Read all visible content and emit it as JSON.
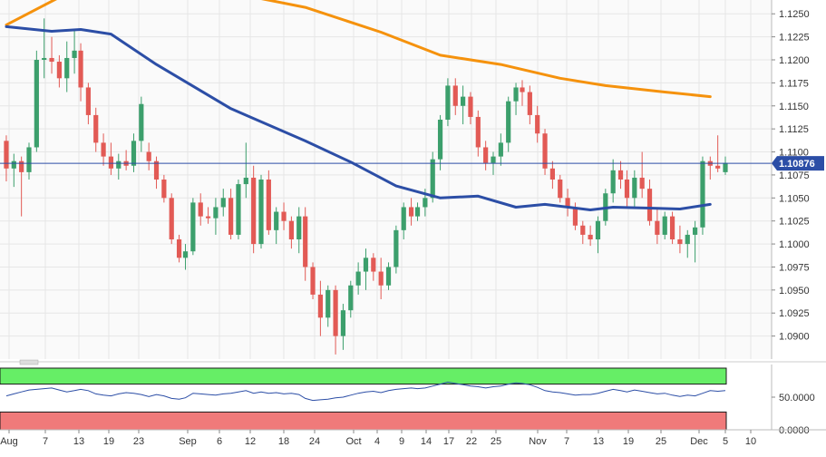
{
  "chart_data": [
    {
      "type": "candlestick",
      "instrument_last_price": "1.10876",
      "ylim": [
        1.0875,
        1.1265
      ],
      "y_ticks": [
        "1.1250",
        "1.1225",
        "1.1200",
        "1.1175",
        "1.1150",
        "1.1125",
        "1.1100",
        "1.1075",
        "1.1050",
        "1.1025",
        "1.1000",
        "1.0975",
        "1.0950",
        "1.0925",
        "1.0900"
      ],
      "x_ticks": [
        "Aug",
        "7",
        "13",
        "19",
        "23",
        "Sep",
        "6",
        "12",
        "18",
        "24",
        "Oct",
        "4",
        "9",
        "14",
        "17",
        "22",
        "25",
        "Nov",
        "7",
        "13",
        "19",
        "25",
        "Dec",
        "5",
        "10"
      ],
      "grid": true,
      "colors": {
        "up": "#3c9f6c",
        "down": "#e25a55",
        "ma_long": "#f5920d",
        "ma_mid": "#2c4ea6",
        "last_price_line": "#2c4ea6",
        "price_tag": "#2c4ea6"
      },
      "candles": [
        [
          1.1112,
          1.1118,
          1.1068,
          1.1082
        ],
        [
          1.1082,
          1.1098,
          1.1062,
          1.109
        ],
        [
          1.109,
          1.1095,
          1.103,
          1.1078
        ],
        [
          1.1078,
          1.111,
          1.107,
          1.1105
        ],
        [
          1.1105,
          1.121,
          1.11,
          1.12
        ],
        [
          1.12,
          1.1245,
          1.118,
          1.1202
        ],
        [
          1.1202,
          1.1225,
          1.1185,
          1.1198
        ],
        [
          1.1198,
          1.1205,
          1.117,
          1.118
        ],
        [
          1.118,
          1.122,
          1.1165,
          1.1202
        ],
        [
          1.1202,
          1.1232,
          1.1185,
          1.121
        ],
        [
          1.121,
          1.1218,
          1.1155,
          1.117
        ],
        [
          1.117,
          1.1175,
          1.113,
          1.114
        ],
        [
          1.114,
          1.1148,
          1.11,
          1.111
        ],
        [
          1.111,
          1.112,
          1.1085,
          1.1095
        ],
        [
          1.1095,
          1.111,
          1.1075,
          1.1082
        ],
        [
          1.1082,
          1.1098,
          1.107,
          1.109
        ],
        [
          1.109,
          1.1102,
          1.108,
          1.1085
        ],
        [
          1.1085,
          1.112,
          1.1078,
          1.1112
        ],
        [
          1.1112,
          1.116,
          1.11,
          1.1152
        ],
        [
          1.11,
          1.111,
          1.108,
          1.109
        ],
        [
          1.109,
          1.1095,
          1.106,
          1.107
        ],
        [
          1.107,
          1.1075,
          1.1045,
          1.105
        ],
        [
          1.105,
          1.1055,
          1.1,
          1.1005
        ],
        [
          1.1005,
          1.101,
          1.098,
          1.0985
        ],
        [
          1.0985,
          1.1,
          1.0972,
          1.0992
        ],
        [
          1.0992,
          1.105,
          1.0988,
          1.1045
        ],
        [
          1.1045,
          1.1055,
          1.102,
          1.103
        ],
        [
          1.103,
          1.104,
          1.1022,
          1.1028
        ],
        [
          1.1028,
          1.105,
          1.101,
          1.104
        ],
        [
          1.104,
          1.106,
          1.103,
          1.105
        ],
        [
          1.105,
          1.106,
          1.1005,
          1.101
        ],
        [
          1.101,
          1.107,
          1.1005,
          1.1065
        ],
        [
          1.1065,
          1.111,
          1.105,
          1.1072
        ],
        [
          1.1072,
          1.1085,
          1.099,
          1.1
        ],
        [
          1.1,
          1.1075,
          1.0995,
          1.107
        ],
        [
          1.107,
          1.108,
          1.101,
          1.1015
        ],
        [
          1.1015,
          1.104,
          1.1,
          1.1035
        ],
        [
          1.1035,
          1.1045,
          1.1015,
          1.1025
        ],
        [
          1.1025,
          1.103,
          1.0995,
          1.1005
        ],
        [
          1.1005,
          1.104,
          1.099,
          1.103
        ],
        [
          1.103,
          1.104,
          1.096,
          1.0975
        ],
        [
          1.0975,
          1.098,
          1.094,
          1.0945
        ],
        [
          1.0945,
          1.096,
          1.09,
          1.092
        ],
        [
          1.092,
          1.0955,
          1.091,
          1.095
        ],
        [
          1.095,
          1.0955,
          1.088,
          1.09
        ],
        [
          1.09,
          1.0935,
          1.0885,
          1.0928
        ],
        [
          1.0928,
          1.096,
          1.092,
          1.0955
        ],
        [
          1.0955,
          1.098,
          1.0945,
          1.097
        ],
        [
          1.097,
          1.0995,
          1.095,
          1.0985
        ],
        [
          1.0985,
          1.099,
          1.096,
          1.097
        ],
        [
          1.097,
          1.0985,
          1.094,
          1.0955
        ],
        [
          1.0955,
          1.098,
          1.095,
          1.0975
        ],
        [
          1.0975,
          1.102,
          1.0968,
          1.1015
        ],
        [
          1.1015,
          1.1045,
          1.1005,
          1.104
        ],
        [
          1.104,
          1.105,
          1.102,
          1.103
        ],
        [
          1.103,
          1.1045,
          1.1025,
          1.104
        ],
        [
          1.104,
          1.106,
          1.103,
          1.105
        ],
        [
          1.105,
          1.11,
          1.1045,
          1.1092
        ],
        [
          1.1092,
          1.114,
          1.108,
          1.1135
        ],
        [
          1.1135,
          1.118,
          1.1128,
          1.1172
        ],
        [
          1.1172,
          1.118,
          1.114,
          1.115
        ],
        [
          1.115,
          1.1172,
          1.113,
          1.116
        ],
        [
          1.116,
          1.1165,
          1.113,
          1.1138
        ],
        [
          1.1138,
          1.1145,
          1.1095,
          1.1105
        ],
        [
          1.1105,
          1.1112,
          1.108,
          1.1088
        ],
        [
          1.1088,
          1.11,
          1.1075,
          1.1095
        ],
        [
          1.1095,
          1.112,
          1.1085,
          1.111
        ],
        [
          1.111,
          1.116,
          1.11,
          1.1155
        ],
        [
          1.1155,
          1.1175,
          1.114,
          1.117
        ],
        [
          1.117,
          1.1178,
          1.115,
          1.1165
        ],
        [
          1.1165,
          1.1172,
          1.113,
          1.114
        ],
        [
          1.114,
          1.115,
          1.111,
          1.112
        ],
        [
          1.112,
          1.1125,
          1.1075,
          1.1082
        ],
        [
          1.1082,
          1.109,
          1.106,
          1.107
        ],
        [
          1.107,
          1.1075,
          1.1045,
          1.105
        ],
        [
          1.105,
          1.106,
          1.103,
          1.104
        ],
        [
          1.104,
          1.1045,
          1.1015,
          1.102
        ],
        [
          1.102,
          1.1025,
          1.1,
          1.101
        ],
        [
          1.101,
          1.102,
          1.0998,
          1.1005
        ],
        [
          1.1005,
          1.103,
          1.099,
          1.1025
        ],
        [
          1.1025,
          1.106,
          1.102,
          1.1055
        ],
        [
          1.1055,
          1.1092,
          1.1045,
          1.108
        ],
        [
          1.108,
          1.109,
          1.106,
          1.107
        ],
        [
          1.107,
          1.108,
          1.104,
          1.105
        ],
        [
          1.105,
          1.108,
          1.104,
          1.1072
        ],
        [
          1.1072,
          1.11,
          1.105,
          1.106
        ],
        [
          1.106,
          1.107,
          1.102,
          1.1025
        ],
        [
          1.1025,
          1.104,
          1.1,
          1.101
        ],
        [
          1.101,
          1.1035,
          1.1005,
          1.103
        ],
        [
          1.103,
          1.1035,
          1.1,
          1.1005
        ],
        [
          1.1005,
          1.102,
          1.099,
          1.1
        ],
        [
          1.1,
          1.1015,
          1.0985,
          1.101
        ],
        [
          1.101,
          1.1025,
          1.098,
          1.1018
        ],
        [
          1.1018,
          1.1095,
          1.101,
          1.109
        ],
        [
          1.109,
          1.1095,
          1.107,
          1.1085
        ],
        [
          1.1085,
          1.1118,
          1.1078,
          1.1082
        ],
        [
          1.1078,
          1.1095,
          1.1075,
          1.1088
        ]
      ],
      "ma_long": [
        [
          0,
          1.1238
        ],
        [
          10,
          1.128
        ],
        [
          30,
          1.1273
        ],
        [
          40,
          1.1257
        ],
        [
          50,
          1.123
        ],
        [
          58,
          1.1205
        ],
        [
          66,
          1.1195
        ],
        [
          74,
          1.118
        ],
        [
          80,
          1.1172
        ],
        [
          88,
          1.1165
        ],
        [
          94,
          1.116
        ]
      ],
      "ma_mid": [
        [
          0,
          1.1236
        ],
        [
          6,
          1.1231
        ],
        [
          10,
          1.1233
        ],
        [
          14,
          1.1228
        ],
        [
          20,
          1.1195
        ],
        [
          30,
          1.1147
        ],
        [
          40,
          1.1112
        ],
        [
          46,
          1.1089
        ],
        [
          52,
          1.1063
        ],
        [
          58,
          1.105
        ],
        [
          63,
          1.1052
        ],
        [
          68,
          1.104
        ],
        [
          72,
          1.1043
        ],
        [
          78,
          1.1037
        ],
        [
          81,
          1.104
        ],
        [
          86,
          1.1039
        ],
        [
          90,
          1.1038
        ],
        [
          94,
          1.1043
        ]
      ],
      "indicator": {
        "ylim": [
          0,
          100
        ],
        "y_ticks": [
          "50.0000",
          "0.0000"
        ],
        "upper_band": 70,
        "lower_band": 30,
        "colors": {
          "line": "#2c4ea6",
          "overbought": "#66ee66",
          "oversold": "#f07a7a"
        },
        "values": [
          52,
          55,
          58,
          61,
          62,
          63,
          64,
          61,
          58,
          60,
          62,
          60,
          55,
          53,
          52,
          55,
          57,
          56,
          54,
          51,
          54,
          52,
          48,
          47,
          49,
          56,
          55,
          54,
          53,
          55,
          56,
          58,
          60,
          56,
          58,
          56,
          57,
          55,
          56,
          54,
          48,
          45,
          46,
          47,
          49,
          50,
          53,
          56,
          58,
          59,
          57,
          60,
          62,
          63,
          64,
          63,
          64,
          67,
          70,
          73,
          71,
          69,
          67,
          66,
          64,
          66,
          67,
          70,
          72,
          71,
          69,
          65,
          60,
          58,
          57,
          55,
          53,
          54,
          54,
          56,
          59,
          62,
          60,
          58,
          61,
          59,
          57,
          55,
          56,
          53,
          51,
          53,
          52,
          56,
          60,
          59,
          60
        ]
      }
    }
  ]
}
